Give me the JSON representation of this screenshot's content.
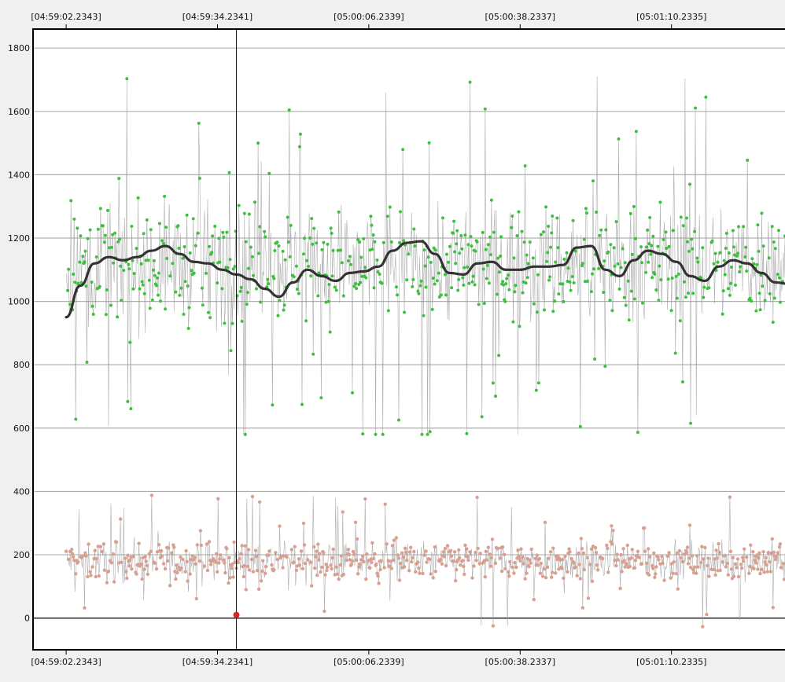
{
  "chart_data": {
    "type": "line",
    "x_ticks": [
      "[04:59:02.2343]",
      "[04:59:34.2341]",
      "[05:00:06.2339]",
      "[05:00:38.2337]",
      "[05:01:10.2335]"
    ],
    "x_tick_seconds": [
      0,
      32,
      64,
      96,
      128
    ],
    "xlim_seconds": [
      -7,
      152
    ],
    "y_ticks": [
      0,
      200,
      400,
      600,
      800,
      1000,
      1200,
      1400,
      1600,
      1800
    ],
    "ylim": [
      -100,
      1860
    ],
    "grid": true,
    "cursor_x_seconds": 36,
    "marker": {
      "x_seconds": 36,
      "y": 10,
      "color": "#e02020"
    },
    "colors": {
      "upper_points": "#3fbf3f",
      "lower_points": "#d8a090",
      "connector": "#9a9a9a",
      "smooth_line": "#333333",
      "gridline": "#b0b0b0",
      "axis": "#000000"
    },
    "series": [
      {
        "kind": "raw_upper",
        "mean": 1120,
        "spread": 240,
        "min": 580,
        "max": 1780,
        "x_range_seconds": [
          0,
          152
        ],
        "approx_points": 900
      },
      {
        "kind": "raw_lower",
        "mean": 180,
        "spread": 80,
        "min": -30,
        "max": 420,
        "x_range_seconds": [
          0,
          152
        ],
        "approx_points": 900
      },
      {
        "kind": "smooth",
        "x": [
          0,
          3,
          6,
          9,
          12,
          15,
          18,
          21,
          24,
          27,
          30,
          33,
          36,
          39,
          42,
          45,
          48,
          51,
          54,
          57,
          60,
          63,
          66,
          69,
          72,
          75,
          78,
          81,
          84,
          87,
          90,
          93,
          96,
          99,
          102,
          105,
          108,
          111,
          114,
          117,
          120,
          123,
          126,
          129,
          132,
          135,
          138,
          141,
          144,
          147,
          150,
          153
        ],
        "y": [
          950,
          1050,
          1120,
          1140,
          1130,
          1140,
          1160,
          1175,
          1150,
          1125,
          1120,
          1100,
          1085,
          1070,
          1040,
          1015,
          1060,
          1100,
          1080,
          1065,
          1090,
          1095,
          1110,
          1160,
          1185,
          1190,
          1150,
          1090,
          1085,
          1120,
          1125,
          1100,
          1100,
          1110,
          1110,
          1115,
          1170,
          1175,
          1100,
          1080,
          1130,
          1160,
          1150,
          1125,
          1080,
          1065,
          1110,
          1130,
          1120,
          1090,
          1060,
          1055
        ]
      }
    ]
  }
}
